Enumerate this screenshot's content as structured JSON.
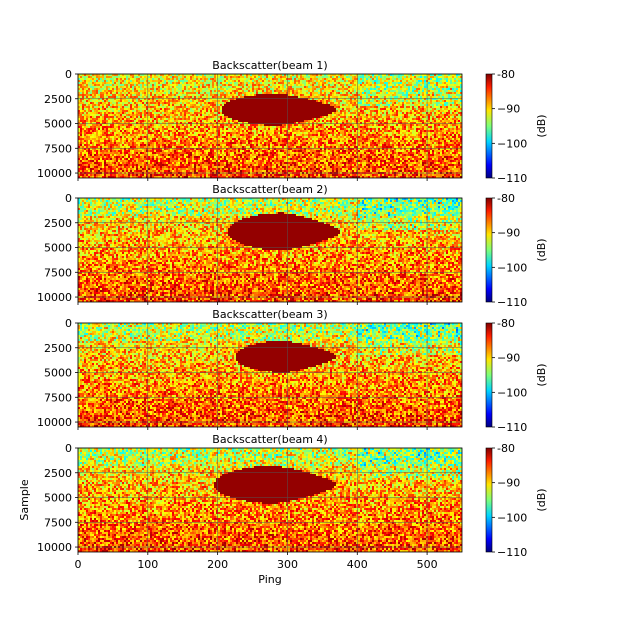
{
  "chart_data": [
    {
      "type": "heatmap",
      "title": "Backscatter(beam 1)",
      "xlim": [
        0,
        550
      ],
      "ylim": [
        0,
        10500
      ],
      "y_inverted": true,
      "yticks": [
        "0",
        "2500",
        "5000",
        "7500",
        "10000"
      ],
      "xticks": [
        "0",
        "100",
        "200",
        "300",
        "400",
        "500"
      ],
      "show_x_tick_labels": false,
      "ylabel": "",
      "xlabel": "",
      "colorbar": {
        "label": "(dB)",
        "ticks": [
          "-80",
          "−90",
          "−100",
          "−110"
        ],
        "range": [
          -110,
          -80
        ],
        "colormap": "jet"
      },
      "target_blob": {
        "ping_range": [
          205,
          370
        ],
        "sample_range": [
          2000,
          5200
        ],
        "value": -80
      },
      "grid": true
    },
    {
      "type": "heatmap",
      "title": "Backscatter(beam 2)",
      "xlim": [
        0,
        550
      ],
      "ylim": [
        0,
        10500
      ],
      "y_inverted": true,
      "yticks": [
        "0",
        "2500",
        "5000",
        "7500",
        "10000"
      ],
      "xticks": [
        "0",
        "100",
        "200",
        "300",
        "400",
        "500"
      ],
      "show_x_tick_labels": false,
      "ylabel": "",
      "xlabel": "",
      "colorbar": {
        "label": "(dB)",
        "ticks": [
          "-80",
          "−90",
          "−100",
          "−110"
        ],
        "range": [
          -110,
          -80
        ],
        "colormap": "jet"
      },
      "target_blob": {
        "ping_range": [
          215,
          375
        ],
        "sample_range": [
          1500,
          5300
        ],
        "value": -80
      },
      "grid": true
    },
    {
      "type": "heatmap",
      "title": "Backscatter(beam 3)",
      "xlim": [
        0,
        550
      ],
      "ylim": [
        0,
        10500
      ],
      "y_inverted": true,
      "yticks": [
        "0",
        "2500",
        "5000",
        "7500",
        "10000"
      ],
      "xticks": [
        "0",
        "100",
        "200",
        "300",
        "400",
        "500"
      ],
      "show_x_tick_labels": false,
      "ylabel": "",
      "xlabel": "",
      "colorbar": {
        "label": "(dB)",
        "ticks": [
          "-80",
          "−90",
          "−100",
          "−110"
        ],
        "range": [
          -110,
          -80
        ],
        "colormap": "jet"
      },
      "target_blob": {
        "ping_range": [
          225,
          370
        ],
        "sample_range": [
          1800,
          5000
        ],
        "value": -80
      },
      "grid": true
    },
    {
      "type": "heatmap",
      "title": "Backscatter(beam 4)",
      "xlim": [
        0,
        550
      ],
      "ylim": [
        0,
        10500
      ],
      "y_inverted": true,
      "yticks": [
        "0",
        "2500",
        "5000",
        "7500",
        "10000"
      ],
      "xticks": [
        "0",
        "100",
        "200",
        "300",
        "400",
        "500"
      ],
      "show_x_tick_labels": true,
      "ylabel": "Sample",
      "xlabel": "Ping",
      "colorbar": {
        "label": "(dB)",
        "ticks": [
          "-80",
          "−90",
          "−100",
          "−110"
        ],
        "range": [
          -110,
          -80
        ],
        "colormap": "jet"
      },
      "target_blob": {
        "ping_range": [
          195,
          370
        ],
        "sample_range": [
          1800,
          5600
        ],
        "value": -80
      },
      "grid": true
    }
  ]
}
